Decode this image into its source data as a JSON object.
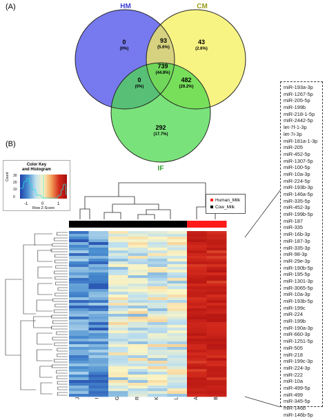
{
  "panel_a_label": "(A)",
  "panel_b_label": "(B)",
  "venn": {
    "set_hm": "HM",
    "set_cm": "CM",
    "set_if": "IF",
    "colors": {
      "hm": "#4a4ee8",
      "cm": "#f6f05a",
      "if": "#4ed84e",
      "hm_label": "#3a3fd0",
      "cm_label": "#9b9b1a",
      "if_label": "#2e9e2e"
    },
    "regions": {
      "hm_only": {
        "count": "0",
        "pct": "(0%)"
      },
      "hm_cm": {
        "count": "93",
        "pct": "(5.6%)"
      },
      "cm_only": {
        "count": "43",
        "pct": "(2.6%)"
      },
      "all": {
        "count": "739",
        "pct": "(44.8%)"
      },
      "hm_if": {
        "count": "0",
        "pct": "(0%)"
      },
      "cm_if": {
        "count": "482",
        "pct": "(29.2%)"
      },
      "if_only": {
        "count": "292",
        "pct": "(17.7%)"
      }
    }
  },
  "color_key": {
    "title_line1": "Color Key",
    "title_line2": "and Histogram",
    "ylabel": "Count",
    "yticks": [
      "30",
      "20",
      "10",
      "0"
    ],
    "xticks": [
      "-1",
      "0",
      "1"
    ],
    "xlabel": "Row Z-Score"
  },
  "legend": {
    "human": "Human_Milk",
    "cow": "Cow_Milk",
    "human_color": "#ff1a1a",
    "cow_color": "#000000"
  },
  "heatmap": {
    "columns": [
      "J",
      "I",
      "G",
      "R",
      "K",
      "L",
      "A",
      "B"
    ],
    "group_colors": [
      "#000000",
      "#000000",
      "#000000",
      "#000000",
      "#000000",
      "#000000",
      "#ff1a1a",
      "#ff1a1a"
    ]
  },
  "mirna_list": [
    "miR-193a-3p",
    "miR-1267-5p",
    "miR-205-5p",
    "miR-199b",
    "miR-218-1-5p",
    "miR-2442-5p",
    "let-7f-1-3p",
    "let-7i-3p",
    "miR-181a-1-3p",
    "miR-205",
    "miR-452-5p",
    "miR-1307-5p",
    "miR-100-5p",
    "miR-10a-3p",
    "miR-224-5p",
    "miR-193b-3p",
    "miR-146a-5p",
    "miR-335-5p",
    "miR-452-3p",
    "miR-199b-5p",
    "miR-187",
    "miR-335",
    "miR-16b-3p",
    "miR-187-3p",
    "miR-335-3p",
    "miR-98-3p",
    "miR-29e-3p",
    "miR-190b-5p",
    "miR-195-5p",
    "miR-1301-3p",
    "miR-3065-5p",
    "miR-10a-3p",
    "miR-193b-5p",
    "miR-199c",
    "miR-224",
    "miR-199b",
    "miR-190a-3p",
    "miR-660-3p",
    "miR-1251-5p",
    "miR-505",
    "miR-218",
    "miR-199c-3p",
    "miR-224-3p",
    "miR-222",
    "miR-10a",
    "miR-499-5p",
    "miR-499",
    "miR-345-5p",
    "miR-146b",
    "miR-146b-5p"
  ]
}
